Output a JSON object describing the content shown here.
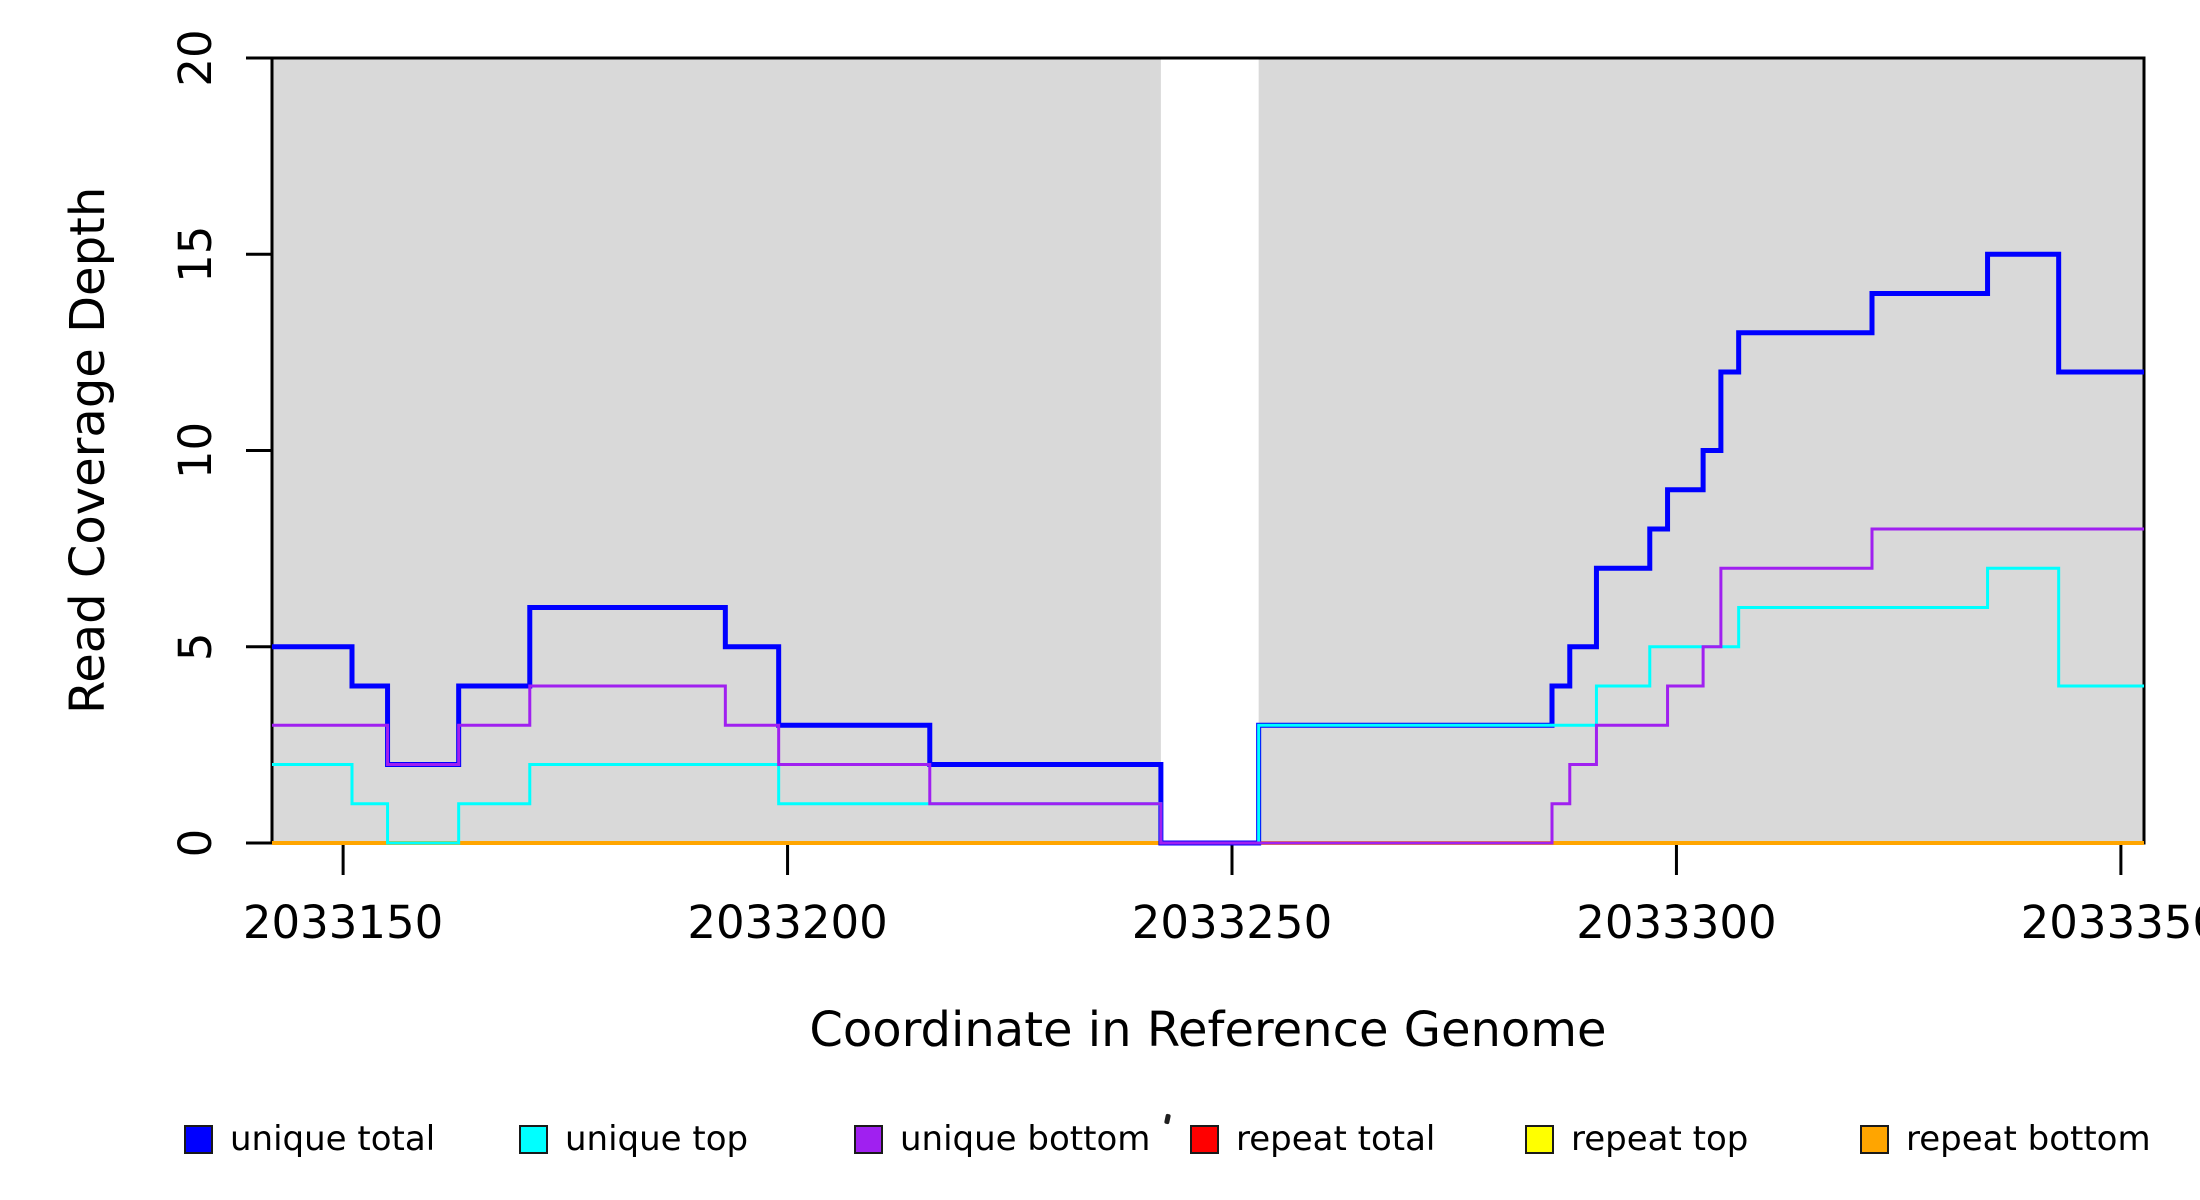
{
  "page": {
    "background": "#ffffff"
  },
  "chart_data": {
    "type": "line",
    "subtype": "step-coverage",
    "title": "",
    "xlabel": "Coordinate in Reference Genome",
    "ylabel": "Read Coverage Depth",
    "xlim": [
      2033142,
      2033352.6
    ],
    "ylim": [
      0,
      20
    ],
    "grid": false,
    "axis_color": "#000000",
    "shade_color": "#d9d9d9",
    "shaded_regions": [
      {
        "x0": 2033142,
        "x1": 2033242
      },
      {
        "x0": 2033253,
        "x1": 2033352.6
      }
    ],
    "xticks": {
      "values": [
        2033150,
        2033200,
        2033250,
        2033300,
        2033350
      ],
      "labels": [
        "2033150",
        "2033200",
        "2033250",
        "2033300",
        "2033350"
      ]
    },
    "yticks": {
      "values": [
        0,
        5,
        10,
        15,
        20
      ],
      "labels": [
        "0",
        "5",
        "10",
        "15",
        "20"
      ]
    },
    "series": [
      {
        "name": "repeat total",
        "slug": "repeat-total",
        "color": "#ff0000",
        "width": 4,
        "steps": [
          [
            2033142,
            0
          ]
        ]
      },
      {
        "name": "repeat top",
        "slug": "repeat-top",
        "color": "#ffff00",
        "width": 4,
        "steps": [
          [
            2033142,
            0
          ]
        ]
      },
      {
        "name": "repeat bottom",
        "slug": "repeat-bottom",
        "color": "#ffa500",
        "width": 4,
        "steps": [
          [
            2033142,
            0
          ]
        ]
      },
      {
        "name": "unique total",
        "slug": "unique-total",
        "color": "#0000ff",
        "width": 5,
        "steps": [
          [
            2033142,
            5
          ],
          [
            2033151,
            4
          ],
          [
            2033155,
            2
          ],
          [
            2033163,
            4
          ],
          [
            2033171,
            6
          ],
          [
            2033193,
            5
          ],
          [
            2033199,
            3
          ],
          [
            2033216,
            2
          ],
          [
            2033242,
            0
          ],
          [
            2033253,
            3
          ],
          [
            2033286,
            4
          ],
          [
            2033288,
            5
          ],
          [
            2033291,
            7
          ],
          [
            2033297,
            8
          ],
          [
            2033299,
            9
          ],
          [
            2033303,
            10
          ],
          [
            2033305,
            12
          ],
          [
            2033307,
            13
          ],
          [
            2033322,
            14
          ],
          [
            2033335,
            15
          ],
          [
            2033343,
            12
          ]
        ]
      },
      {
        "name": "unique top",
        "slug": "unique-top",
        "color": "#00ffff",
        "width": 3,
        "steps": [
          [
            2033142,
            2
          ],
          [
            2033151,
            1
          ],
          [
            2033155,
            0
          ],
          [
            2033163,
            1
          ],
          [
            2033171,
            2
          ],
          [
            2033199,
            1
          ],
          [
            2033242,
            0
          ],
          [
            2033253,
            3
          ],
          [
            2033291,
            4
          ],
          [
            2033297,
            5
          ],
          [
            2033307,
            6
          ],
          [
            2033335,
            7
          ],
          [
            2033343,
            4
          ]
        ]
      },
      {
        "name": "unique bottom",
        "slug": "unique-bottom",
        "color": "#a020f0",
        "width": 3,
        "steps": [
          [
            2033142,
            3
          ],
          [
            2033155,
            2
          ],
          [
            2033163,
            3
          ],
          [
            2033171,
            4
          ],
          [
            2033193,
            3
          ],
          [
            2033199,
            2
          ],
          [
            2033216,
            1
          ],
          [
            2033242,
            0
          ],
          [
            2033286,
            1
          ],
          [
            2033288,
            2
          ],
          [
            2033291,
            3
          ],
          [
            2033299,
            4
          ],
          [
            2033303,
            5
          ],
          [
            2033305,
            7
          ],
          [
            2033322,
            8
          ]
        ]
      }
    ],
    "legend": {
      "position": "bottom",
      "entries": [
        {
          "label": "unique total",
          "slug": "unique-total",
          "color": "#0000ff"
        },
        {
          "label": "unique top",
          "slug": "unique-top",
          "color": "#00ffff"
        },
        {
          "label": "unique bottom",
          "slug": "unique-bottom",
          "color": "#a020f0"
        },
        {
          "label": "repeat total",
          "slug": "repeat-total",
          "color": "#ff0000"
        },
        {
          "label": "repeat top",
          "slug": "repeat-top",
          "color": "#ffff00"
        },
        {
          "label": "repeat bottom",
          "slug": "repeat-bottom",
          "color": "#ffa500"
        }
      ]
    }
  }
}
